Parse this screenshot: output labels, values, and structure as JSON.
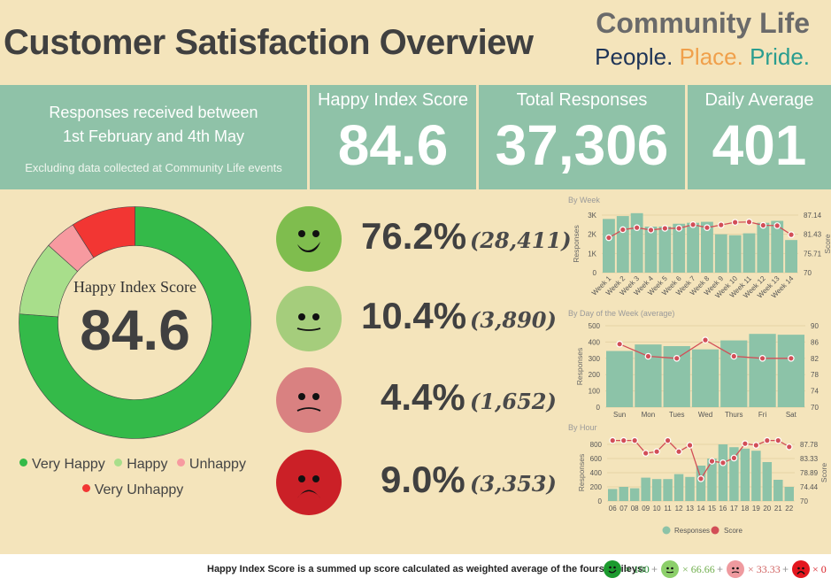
{
  "header": {
    "title": "Customer Satisfaction Overview",
    "brand_name": "Community Life",
    "tagline": [
      "People.",
      "Place.",
      "Pride."
    ]
  },
  "kpis": {
    "date_range_line1": "Responses received between",
    "date_range_line2": "1st February and 4th May",
    "note": "Excluding data collected at Community Life events",
    "happy_index_label": "Happy Index Score",
    "happy_index_value": "84.6",
    "total_responses_label": "Total Responses",
    "total_responses_value": "37,306",
    "daily_average_label": "Daily Average",
    "daily_average_value": "401"
  },
  "donut": {
    "center_label": "Happy Index Score",
    "center_value": "84.6",
    "segments": [
      {
        "name": "Very Happy",
        "pct": 76.2,
        "color": "#34ba49"
      },
      {
        "name": "Happy",
        "pct": 10.4,
        "color": "#a8de8b"
      },
      {
        "name": "Unhappy",
        "pct": 4.4,
        "color": "#f79aa0"
      },
      {
        "name": "Very Unhappy",
        "pct": 9.0,
        "color": "#f23633"
      }
    ],
    "legend": [
      "Very Happy",
      "Happy",
      "Unhappy",
      "Very Unhappy"
    ]
  },
  "breakdown": [
    {
      "sentiment": "very-happy",
      "pct": "76.2%",
      "count": "(28,411)",
      "face_color": "#7fbd4e"
    },
    {
      "sentiment": "happy",
      "pct": "10.4%",
      "count": "(3,890)",
      "face_color": "#a5cd7c"
    },
    {
      "sentiment": "unhappy",
      "pct": "4.4%",
      "count": "(1,652)",
      "face_color": "#d98181"
    },
    {
      "sentiment": "very-unhappy",
      "pct": "9.0%",
      "count": "(3,353)",
      "face_color": "#cb2027"
    }
  ],
  "chart_data": [
    {
      "type": "bar",
      "title": "By Week",
      "categories": [
        "Week 1",
        "Week 2",
        "Week 3",
        "Week 4",
        "Week 5",
        "Week 6",
        "Week 7",
        "Week 8",
        "Week 9",
        "Week 10",
        "Week 11",
        "Week 12",
        "Week 13",
        "Week 14"
      ],
      "series": [
        {
          "name": "Responses",
          "type": "bar",
          "axis": "left",
          "values": [
            2800,
            2950,
            3100,
            2400,
            2400,
            2550,
            2600,
            2650,
            2000,
            1950,
            2050,
            2600,
            2700,
            1700
          ]
        },
        {
          "name": "Score",
          "type": "line",
          "axis": "right",
          "values": [
            80.4,
            82.8,
            83.4,
            82.7,
            83.2,
            83.2,
            84.3,
            83.4,
            84.2,
            85.0,
            85.1,
            84.1,
            84.0,
            81.3
          ]
        }
      ],
      "ylabel": "Responses",
      "y2label": "Score",
      "ylim": [
        0,
        3000
      ],
      "yticks": [
        "0",
        "1K",
        "2K",
        "3K"
      ],
      "y2lim": [
        70,
        87.14
      ],
      "y2ticks": [
        "70",
        "75.71",
        "81.43",
        "87.14"
      ]
    },
    {
      "type": "bar",
      "title": "By Day of the Week (average)",
      "categories": [
        "Sun",
        "Mon",
        "Tues",
        "Wed",
        "Thurs",
        "Fri",
        "Sat"
      ],
      "series": [
        {
          "name": "Responses",
          "type": "bar",
          "axis": "left",
          "values": [
            345,
            385,
            375,
            355,
            410,
            450,
            445
          ]
        },
        {
          "name": "Score",
          "type": "line",
          "axis": "right",
          "values": [
            85.5,
            82.5,
            82.0,
            86.5,
            82.5,
            82.0,
            82.0
          ]
        }
      ],
      "ylabel": "Responses",
      "y2label": "Score",
      "ylim": [
        0,
        500
      ],
      "yticks": [
        "0",
        "100",
        "200",
        "300",
        "400",
        "500"
      ],
      "y2lim": [
        70,
        90
      ],
      "y2ticks": [
        "70",
        "74",
        "78",
        "82",
        "86",
        "90"
      ]
    },
    {
      "type": "bar",
      "title": "By Hour",
      "categories": [
        "06",
        "07",
        "08",
        "09",
        "10",
        "11",
        "12",
        "13",
        "14",
        "15",
        "16",
        "17",
        "18",
        "19",
        "20",
        "21",
        "22"
      ],
      "series": [
        {
          "name": "Responses",
          "type": "bar",
          "axis": "left",
          "values": [
            170,
            200,
            180,
            330,
            310,
            310,
            380,
            340,
            500,
            600,
            800,
            760,
            740,
            710,
            550,
            300,
            200
          ]
        },
        {
          "name": "Score",
          "type": "line",
          "axis": "right",
          "values": [
            89,
            89,
            89,
            85,
            85.5,
            89,
            85.5,
            87.5,
            77,
            82.5,
            82,
            83.5,
            88,
            87.5,
            89,
            89,
            87
          ]
        }
      ],
      "ylabel": "Responses",
      "y2label": "Score",
      "ylim": [
        0,
        800
      ],
      "yticks": [
        "0",
        "200",
        "400",
        "600",
        "800"
      ],
      "y2lim": [
        70,
        87.78
      ],
      "y2ticks": [
        "70",
        "74.44",
        "78.89",
        "83.33",
        "87.78"
      ],
      "legend": [
        "Responses",
        "Score"
      ],
      "legend_position": "bottom"
    }
  ],
  "colors": {
    "bar": "#8cc3a8",
    "line": "#d24e57",
    "kpi_bg": "#8fc2a8",
    "page_bg": "#f4e4bb"
  },
  "footer": {
    "text": "Happy Index Score is a summed up score calculated as weighted average of the fours smileys:",
    "weights": [
      {
        "label": "× 100",
        "color": "#1f8b2e"
      },
      {
        "label": "× 66.66",
        "color": "#6fae4c"
      },
      {
        "label": "× 33.33",
        "color": "#d0605f"
      },
      {
        "label": "× 0",
        "color": "#d81f26"
      }
    ],
    "plus": "+"
  }
}
